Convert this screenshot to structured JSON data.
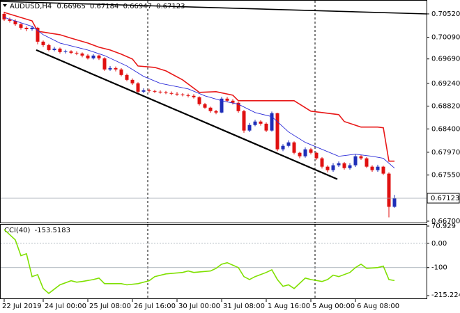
{
  "chart_data": {
    "type": "candlestick",
    "symbol": "AUDUSD,H4",
    "categories": [
      "22 Jul 2019",
      null,
      null,
      null,
      null,
      null,
      null,
      "24 Jul 00:00",
      null,
      null,
      null,
      null,
      null,
      null,
      null,
      "25 Jul 08:00",
      null,
      null,
      null,
      null,
      null,
      null,
      null,
      "26 Jul 16:00",
      null,
      null,
      null,
      null,
      null,
      null,
      null,
      "30 Jul 00:00",
      null,
      null,
      null,
      null,
      null,
      null,
      null,
      "31 Jul 08:00",
      null,
      null,
      null,
      null,
      null,
      null,
      null,
      "1 Aug 16:00",
      null,
      null,
      null,
      null,
      null,
      null,
      null,
      "5 Aug 00:00",
      null,
      null,
      null,
      null,
      null,
      null,
      null,
      "6 Aug 08:00",
      null,
      null,
      null,
      null,
      null,
      null,
      null
    ],
    "open": [
      0.7052,
      0.70418,
      0.70392,
      0.70328,
      0.70264,
      0.70238,
      0.70264,
      0.70008,
      0.69944,
      0.69854,
      0.6988,
      0.69816,
      0.69829,
      0.69803,
      0.6979,
      0.69752,
      0.69701,
      0.69752,
      0.69701,
      0.69496,
      0.69522,
      0.69496,
      0.69394,
      0.69304,
      0.6924,
      0.69086,
      0.69112,
      0.69099,
      0.69086,
      0.69074,
      0.69061,
      0.69048,
      0.69035,
      0.69022,
      0.6901,
      0.68984,
      0.68856,
      0.68792,
      0.68728,
      0.68702,
      0.68958,
      0.6892,
      0.68882,
      0.68728,
      0.6837,
      0.68472,
      0.68536,
      0.68496,
      0.6837,
      0.6869,
      0.68024,
      0.68088,
      0.68152,
      0.6796,
      0.67896,
      0.68024,
      0.6796,
      0.67858,
      0.67704,
      0.6764,
      0.6773,
      0.67768,
      0.67678,
      0.6773,
      0.67896,
      0.67858,
      0.67704,
      0.6764,
      0.67704,
      0.67576,
      0.66965
    ],
    "high": [
      0.7056,
      0.7045,
      0.7042,
      0.7035,
      0.7029,
      0.703,
      0.7028,
      0.7003,
      0.6997,
      0.6991,
      0.699,
      0.6986,
      0.6985,
      0.6983,
      0.6981,
      0.6978,
      0.6978,
      0.6977,
      0.6972,
      0.6956,
      0.6955,
      0.6952,
      0.6942,
      0.6933,
      0.6926,
      0.6915,
      0.6914,
      0.6912,
      0.6911,
      0.691,
      0.6909,
      0.6908,
      0.6906,
      0.6905,
      0.6904,
      0.69,
      0.6888,
      0.6881,
      0.6875,
      0.6899,
      0.6899,
      0.6895,
      0.689,
      0.6875,
      0.6851,
      0.6857,
      0.6856,
      0.6852,
      0.6872,
      0.687,
      0.6812,
      0.6819,
      0.6817,
      0.6798,
      0.6806,
      0.6805,
      0.6798,
      0.6788,
      0.6773,
      0.6777,
      0.678,
      0.6779,
      0.6777,
      0.6793,
      0.6792,
      0.6788,
      0.6773,
      0.6774,
      0.6772,
      0.676,
      0.67184
    ],
    "low": [
      0.7039,
      0.7036,
      0.703,
      0.7023,
      0.702,
      0.7021,
      0.6996,
      0.6991,
      0.6983,
      0.6983,
      0.6979,
      0.6979,
      0.6978,
      0.6976,
      0.6972,
      0.6968,
      0.6968,
      0.6967,
      0.6947,
      0.6947,
      0.6946,
      0.6937,
      0.6928,
      0.6921,
      0.6906,
      0.6906,
      0.6907,
      0.6906,
      0.6905,
      0.6904,
      0.6902,
      0.6901,
      0.69,
      0.6898,
      0.6896,
      0.6883,
      0.6877,
      0.687,
      0.6867,
      0.6869,
      0.6889,
      0.6885,
      0.687,
      0.6833,
      0.6834,
      0.6845,
      0.6846,
      0.6834,
      0.6835,
      0.6799,
      0.6799,
      0.6806,
      0.6793,
      0.6786,
      0.6787,
      0.6793,
      0.6783,
      0.6767,
      0.676,
      0.6761,
      0.677,
      0.6765,
      0.6765,
      0.677,
      0.6783,
      0.6768,
      0.6761,
      0.6761,
      0.6755,
      0.6677,
      0.66947
    ],
    "close": [
      0.70418,
      0.70392,
      0.70328,
      0.70264,
      0.70238,
      0.70264,
      0.70008,
      0.69944,
      0.69854,
      0.6988,
      0.69816,
      0.69829,
      0.69803,
      0.6979,
      0.69752,
      0.69701,
      0.69752,
      0.69701,
      0.69496,
      0.69522,
      0.69496,
      0.69394,
      0.69304,
      0.6924,
      0.69086,
      0.69112,
      0.69099,
      0.69086,
      0.69074,
      0.69061,
      0.69048,
      0.69035,
      0.69022,
      0.6901,
      0.68984,
      0.68856,
      0.68792,
      0.68728,
      0.68702,
      0.68958,
      0.6892,
      0.68882,
      0.68728,
      0.6837,
      0.68472,
      0.68536,
      0.68496,
      0.6837,
      0.6869,
      0.68024,
      0.68088,
      0.68152,
      0.6796,
      0.67896,
      0.68024,
      0.6796,
      0.67858,
      0.67704,
      0.6764,
      0.6773,
      0.67768,
      0.67678,
      0.6773,
      0.67896,
      0.67858,
      0.67704,
      0.6764,
      0.67704,
      0.67576,
      0.66965,
      0.67123
    ],
    "bull_color": "#1f2fb8",
    "bear_color": "#e01010",
    "ylim": [
      0.66674,
      0.70776
    ],
    "yticks": [
      {
        "value": 0.7052,
        "label": "0.70520"
      },
      {
        "value": 0.7009,
        "label": "0.70090"
      },
      {
        "value": 0.6969,
        "label": "0.69690"
      },
      {
        "value": 0.6924,
        "label": "0.69240"
      },
      {
        "value": 0.6882,
        "label": "0.68820"
      },
      {
        "value": 0.684,
        "label": "0.68400"
      },
      {
        "value": 0.6797,
        "label": "0.67970"
      },
      {
        "value": 0.6755,
        "label": "0.67550"
      },
      {
        "value": 0.667,
        "label": "0.66700"
      }
    ],
    "overlays": [
      {
        "color": "#e81818",
        "width": 1.6,
        "x": [
          0,
          5,
          6,
          10,
          12,
          15,
          17,
          19,
          21,
          23,
          24,
          27,
          29,
          32,
          35,
          38,
          41,
          42,
          52,
          55,
          60,
          61,
          64,
          67,
          68,
          69,
          70
        ],
        "values": [
          0.70546,
          0.70392,
          0.702,
          0.70136,
          0.70072,
          0.69982,
          0.69906,
          0.69854,
          0.69778,
          0.69688,
          0.6956,
          0.69534,
          0.6947,
          0.69304,
          0.69074,
          0.69086,
          0.69022,
          0.6892,
          0.6892,
          0.68728,
          0.68664,
          0.68536,
          0.68434,
          0.68434,
          0.68421,
          0.67806,
          0.67806
        ]
      },
      {
        "color": "#2a2ad8",
        "width": 0.9,
        "x": [
          0,
          5,
          7,
          10,
          15,
          18,
          22,
          25,
          28,
          33,
          36,
          39,
          42,
          45,
          48,
          51,
          54,
          57,
          60,
          63,
          66,
          68,
          70
        ],
        "values": [
          0.70456,
          0.7029,
          0.70136,
          0.69982,
          0.69854,
          0.69752,
          0.6956,
          0.69368,
          0.6924,
          0.69138,
          0.6901,
          0.6892,
          0.68856,
          0.68702,
          0.68626,
          0.68344,
          0.68152,
          0.68024,
          0.67896,
          0.67934,
          0.67896,
          0.67858,
          0.67678
        ]
      },
      {
        "color": "#000000",
        "width": 1.6,
        "x": [
          -0.75,
          75.75
        ],
        "values": [
          0.7075,
          0.7052
        ]
      },
      {
        "color": "#000000",
        "width": 2.2,
        "x": [
          5.75,
          59.75
        ],
        "values": [
          0.69854,
          0.67474
        ]
      }
    ],
    "indicator": {
      "name": "CCI(40)",
      "color": "#7fe000",
      "x": [
        0,
        2,
        3,
        4,
        5,
        6,
        7,
        8,
        10,
        12,
        13,
        14,
        16,
        17,
        18,
        20,
        21,
        22,
        24,
        26,
        27,
        29,
        32,
        33,
        34,
        37,
        38,
        39,
        40,
        42,
        43,
        44,
        45,
        47,
        48,
        49,
        50,
        51,
        52,
        54,
        55,
        57,
        58,
        59,
        60,
        62,
        63,
        64,
        65,
        67,
        68,
        69,
        70
      ],
      "values": [
        57,
        14,
        -51,
        -43,
        -137,
        -129,
        -186,
        -206,
        -171,
        -154,
        -160,
        -157,
        -149,
        -143,
        -166,
        -166,
        -166,
        -171,
        -166,
        -154,
        -137,
        -126,
        -120,
        -114,
        -120,
        -114,
        -103,
        -86,
        -80,
        -100,
        -137,
        -149,
        -137,
        -120,
        -109,
        -149,
        -177,
        -171,
        -186,
        -143,
        -149,
        -157,
        -149,
        -131,
        -137,
        -120,
        -100,
        -86,
        -103,
        -100,
        -94,
        -149,
        -153.5183
      ],
      "ylim": [
        -215.2247,
        70.929
      ],
      "yticks": [
        70.929,
        {
          "value": 0,
          "label": "0.00"
        },
        -100,
        -215.2247
      ]
    }
  }
}
